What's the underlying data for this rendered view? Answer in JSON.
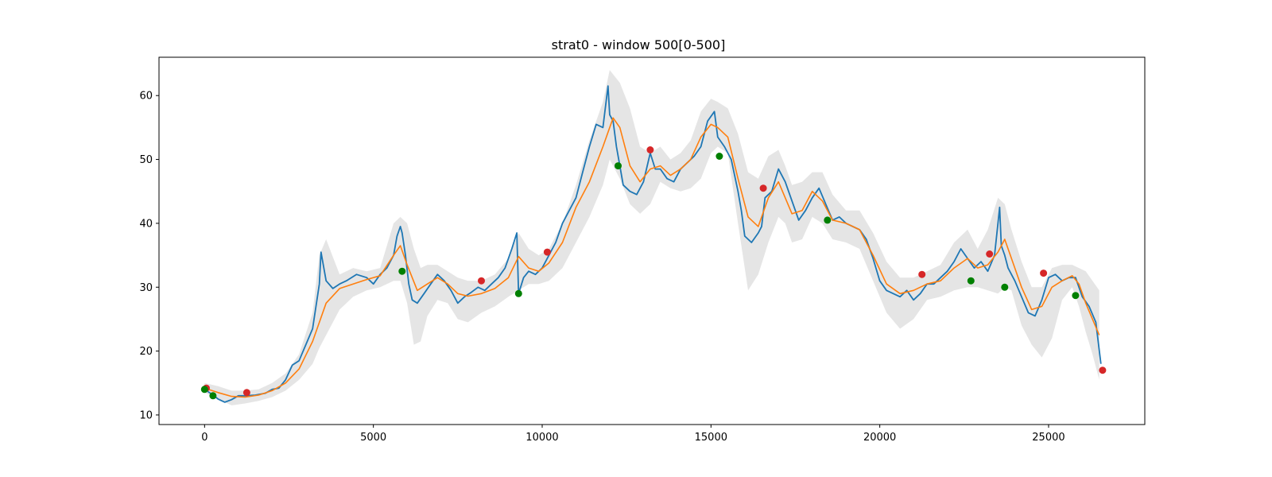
{
  "chart_data": {
    "type": "line",
    "title": "strat0 - window 500[0-500]",
    "xlabel": "",
    "ylabel": "",
    "xlim": [
      -1350,
      27850
    ],
    "ylim": [
      8.5,
      66
    ],
    "x_ticks": [
      0,
      5000,
      10000,
      15000,
      20000,
      25000
    ],
    "y_ticks": [
      10,
      20,
      30,
      40,
      50,
      60
    ],
    "grid": false,
    "colors": {
      "price": "#1f77b4",
      "moving_average": "#ff7f0e",
      "band_fill": "#d3d3d3",
      "sell_marker": "#d62728",
      "buy_marker": "#008000"
    },
    "series": [
      {
        "key": "price",
        "x": [
          0,
          200,
          400,
          600,
          800,
          1000,
          1200,
          1500,
          1800,
          2000,
          2200,
          2400,
          2600,
          2800,
          3000,
          3200,
          3400,
          3450,
          3600,
          3800,
          4000,
          4200,
          4500,
          4800,
          5000,
          5200,
          5400,
          5600,
          5700,
          5800,
          5850,
          5950,
          6050,
          6150,
          6300,
          6500,
          6700,
          6900,
          7100,
          7300,
          7500,
          7700,
          7900,
          8100,
          8300,
          8500,
          8700,
          8900,
          9100,
          9250,
          9300,
          9450,
          9600,
          9800,
          10000,
          10200,
          10400,
          10600,
          10800,
          11000,
          11200,
          11400,
          11600,
          11800,
          11950,
          12000,
          12100,
          12200,
          12300,
          12400,
          12600,
          12800,
          13000,
          13200,
          13350,
          13500,
          13700,
          13900,
          14100,
          14300,
          14500,
          14700,
          14900,
          15100,
          15200,
          15400,
          15600,
          15800,
          15900,
          16000,
          16200,
          16400,
          16500,
          16600,
          16800,
          17000,
          17200,
          17400,
          17600,
          17800,
          18000,
          18200,
          18400,
          18600,
          18800,
          19000,
          19200,
          19400,
          19600,
          19800,
          20000,
          20200,
          20400,
          20600,
          20800,
          21000,
          21200,
          21400,
          21600,
          21800,
          22000,
          22200,
          22400,
          22600,
          22800,
          23000,
          23200,
          23400,
          23500,
          23550,
          23600,
          23700,
          23800,
          24000,
          24200,
          24400,
          24600,
          24800,
          25000,
          25200,
          25400,
          25600,
          25800,
          26000,
          26200,
          26400,
          26550
        ],
        "values": [
          14.0,
          13.3,
          12.5,
          12.0,
          12.4,
          13.0,
          13.0,
          13.1,
          13.4,
          14.0,
          14.2,
          15.5,
          17.8,
          18.5,
          21.0,
          23.5,
          30.5,
          35.5,
          31.0,
          29.8,
          30.5,
          31.0,
          32.0,
          31.5,
          30.5,
          32.0,
          33.0,
          35.0,
          38.0,
          39.5,
          38.5,
          35.0,
          30.5,
          28.0,
          27.5,
          29.0,
          30.5,
          32.0,
          31.0,
          29.5,
          27.5,
          28.5,
          29.2,
          30.0,
          29.5,
          30.5,
          31.5,
          33.0,
          36.0,
          38.5,
          29.0,
          31.5,
          32.5,
          32.0,
          33.0,
          35.0,
          37.0,
          40.0,
          42.0,
          44.0,
          48.0,
          52.0,
          55.5,
          55.0,
          61.5,
          57.0,
          56.0,
          52.0,
          49.0,
          46.0,
          45.0,
          44.5,
          46.5,
          51.0,
          48.5,
          48.5,
          47.0,
          46.5,
          48.5,
          49.5,
          50.5,
          52.0,
          56.0,
          57.5,
          53.5,
          52.0,
          50.0,
          45.0,
          42.0,
          38.0,
          37.0,
          38.5,
          39.5,
          44.0,
          45.0,
          48.5,
          46.5,
          43.5,
          40.5,
          42.0,
          44.0,
          45.5,
          43.0,
          40.5,
          41.0,
          40.0,
          39.5,
          39.0,
          37.5,
          34.5,
          31.0,
          29.5,
          29.0,
          28.5,
          29.5,
          28.0,
          29.0,
          30.5,
          30.5,
          31.5,
          32.5,
          34.0,
          36.0,
          34.5,
          33.0,
          34.0,
          32.5,
          35.0,
          40.0,
          42.5,
          36.5,
          35.0,
          33.0,
          31.0,
          28.5,
          26.0,
          25.5,
          28.0,
          31.5,
          32.0,
          31.0,
          31.5,
          31.5,
          28.5,
          27.0,
          24.5,
          18.0
        ]
      },
      {
        "key": "moving_average",
        "x": [
          0,
          400,
          800,
          1200,
          1600,
          2000,
          2400,
          2800,
          3200,
          3600,
          4000,
          4400,
          4800,
          5200,
          5600,
          5800,
          6000,
          6300,
          6600,
          6900,
          7200,
          7500,
          7800,
          8200,
          8600,
          9000,
          9300,
          9600,
          9900,
          10200,
          10600,
          11000,
          11400,
          11800,
          12100,
          12300,
          12600,
          12900,
          13200,
          13500,
          13800,
          14100,
          14400,
          14700,
          15000,
          15200,
          15500,
          15800,
          16100,
          16400,
          16700,
          17000,
          17200,
          17400,
          17700,
          18000,
          18300,
          18600,
          19000,
          19400,
          19800,
          20200,
          20600,
          21000,
          21400,
          21800,
          22200,
          22600,
          22900,
          23200,
          23500,
          23700,
          23900,
          24200,
          24500,
          24800,
          25100,
          25400,
          25700,
          25900,
          26100,
          26300,
          26500
        ],
        "values": [
          14.2,
          13.5,
          12.9,
          12.8,
          13.1,
          13.8,
          15.0,
          17.2,
          21.5,
          27.5,
          29.8,
          30.5,
          31.2,
          31.8,
          35.0,
          36.5,
          33.5,
          29.5,
          30.5,
          31.5,
          30.5,
          29.0,
          28.6,
          29.0,
          29.8,
          31.5,
          34.8,
          33.0,
          32.5,
          33.8,
          37.0,
          42.5,
          46.5,
          52.0,
          56.5,
          55.0,
          49.0,
          46.5,
          48.5,
          49.0,
          47.5,
          48.5,
          50.0,
          53.5,
          55.5,
          55.0,
          53.5,
          47.0,
          41.0,
          39.5,
          44.0,
          46.5,
          44.0,
          41.5,
          42.0,
          45.0,
          43.5,
          40.5,
          40.0,
          39.0,
          35.0,
          30.5,
          29.0,
          29.5,
          30.5,
          31.0,
          33.0,
          34.5,
          33.0,
          33.5,
          35.5,
          37.5,
          34.5,
          30.0,
          26.5,
          27.0,
          30.0,
          31.0,
          31.8,
          30.5,
          27.5,
          25.0,
          22.5
        ]
      }
    ],
    "band": {
      "x": [
        0,
        400,
        800,
        1200,
        1600,
        2000,
        2400,
        2800,
        3200,
        3400,
        3600,
        4000,
        4400,
        4800,
        5200,
        5600,
        5800,
        6000,
        6200,
        6400,
        6600,
        6900,
        7200,
        7500,
        7800,
        8200,
        8600,
        9000,
        9300,
        9600,
        9900,
        10200,
        10600,
        11000,
        11400,
        11800,
        12000,
        12300,
        12600,
        12900,
        13200,
        13500,
        13800,
        14100,
        14400,
        14700,
        15000,
        15200,
        15500,
        15800,
        16100,
        16400,
        16700,
        17000,
        17200,
        17400,
        17700,
        18000,
        18300,
        18600,
        19000,
        19400,
        19800,
        20200,
        20600,
        21000,
        21400,
        21800,
        22200,
        22600,
        22900,
        23200,
        23500,
        23700,
        23900,
        24200,
        24500,
        24800,
        25100,
        25400,
        25700,
        25900,
        26100,
        26300,
        26500
      ],
      "upper": [
        15.0,
        14.5,
        13.8,
        13.8,
        14.0,
        15.0,
        16.5,
        19.5,
        26.0,
        35.0,
        37.5,
        32.0,
        33.0,
        32.5,
        33.0,
        40.0,
        41.0,
        40.0,
        36.0,
        33.0,
        33.5,
        33.5,
        32.5,
        31.5,
        31.0,
        31.0,
        32.0,
        34.5,
        38.5,
        36.0,
        35.0,
        36.0,
        40.0,
        46.0,
        53.0,
        59.0,
        64.0,
        62.0,
        58.0,
        52.0,
        51.0,
        52.0,
        50.0,
        51.0,
        53.0,
        57.5,
        59.5,
        59.0,
        58.0,
        54.0,
        48.0,
        47.0,
        50.5,
        51.5,
        49.0,
        46.0,
        46.5,
        48.0,
        48.0,
        44.5,
        42.0,
        42.0,
        38.5,
        34.0,
        31.5,
        31.5,
        32.5,
        33.5,
        37.0,
        39.0,
        36.0,
        39.0,
        44.0,
        43.0,
        39.0,
        34.0,
        30.0,
        30.0,
        33.0,
        33.5,
        33.5,
        33.0,
        32.5,
        31.0,
        29.5
      ],
      "lower": [
        13.5,
        12.5,
        11.5,
        11.8,
        12.2,
        12.8,
        13.8,
        15.5,
        18.0,
        20.5,
        22.5,
        26.5,
        28.5,
        29.5,
        30.0,
        31.0,
        31.0,
        27.5,
        21.0,
        21.5,
        25.5,
        28.0,
        27.5,
        25.0,
        24.5,
        26.0,
        27.0,
        28.5,
        29.5,
        30.5,
        30.5,
        31.0,
        33.0,
        37.0,
        41.0,
        46.0,
        50.0,
        47.0,
        43.0,
        41.5,
        43.0,
        46.5,
        45.5,
        45.0,
        45.5,
        47.0,
        51.0,
        52.0,
        51.0,
        40.0,
        29.5,
        32.0,
        37.0,
        41.0,
        40.0,
        37.0,
        37.5,
        41.0,
        40.0,
        37.5,
        37.0,
        36.0,
        31.0,
        26.0,
        23.5,
        25.0,
        28.0,
        28.5,
        29.5,
        30.0,
        30.0,
        29.5,
        29.0,
        30.0,
        29.5,
        24.0,
        21.0,
        19.0,
        22.0,
        28.0,
        30.0,
        27.0,
        23.0,
        19.5,
        15.5
      ]
    },
    "sell_points": {
      "x": [
        50,
        1250,
        8200,
        10150,
        13200,
        16550,
        21250,
        23250,
        24850,
        26600
      ],
      "y": [
        14.2,
        13.5,
        31.0,
        35.5,
        51.5,
        45.5,
        32.0,
        35.2,
        32.2,
        17.0
      ]
    },
    "buy_points": {
      "x": [
        0,
        250,
        5850,
        9300,
        12250,
        15250,
        18450,
        22700,
        23700,
        25800
      ],
      "y": [
        14.0,
        13.0,
        32.5,
        29.0,
        49.0,
        50.5,
        40.5,
        31.0,
        30.0,
        28.7
      ]
    }
  }
}
